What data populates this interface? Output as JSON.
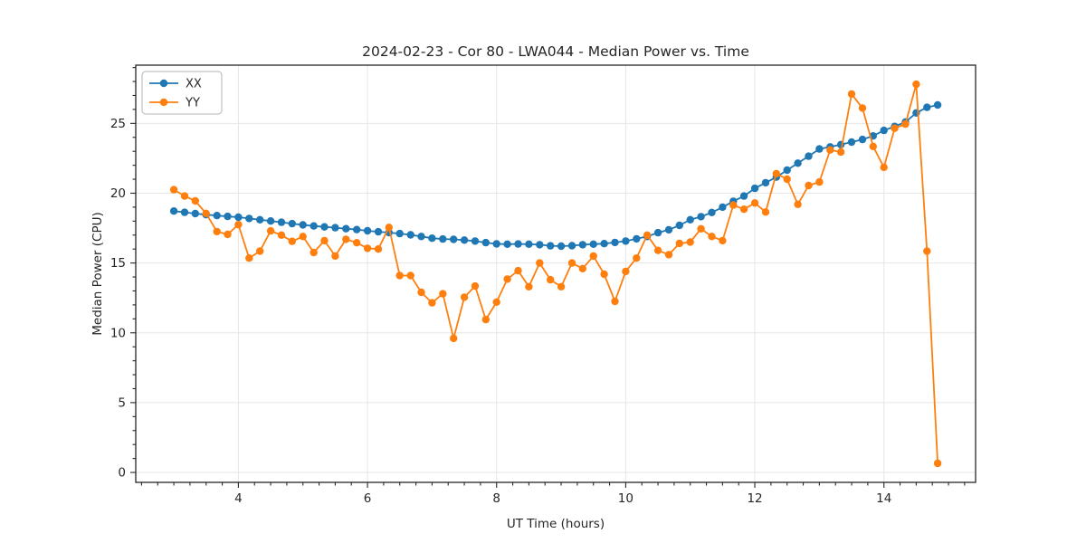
{
  "chart_data": {
    "type": "line",
    "title": "2024-02-23 - Cor 80 - LWA044 - Median Power vs. Time",
    "xlabel": "UT Time (hours)",
    "ylabel": "Median Power (CPU)",
    "xlim": [
      2.41,
      15.42
    ],
    "ylim": [
      -0.71,
      29.17
    ],
    "xticks": [
      4,
      6,
      8,
      10,
      12,
      14
    ],
    "yticks": [
      0,
      5,
      10,
      15,
      20,
      25
    ],
    "x_minor_step": 0.25,
    "y_minor_step": 1,
    "grid": "major-both",
    "legend_position": "upper-left",
    "background_color": "#ffffff",
    "grid_color": "#e6e6e6",
    "axis_color": "#262626",
    "x": [
      3.0,
      3.167,
      3.333,
      3.5,
      3.667,
      3.833,
      4.0,
      4.167,
      4.333,
      4.5,
      4.667,
      4.833,
      5.0,
      5.167,
      5.333,
      5.5,
      5.667,
      5.833,
      6.0,
      6.167,
      6.333,
      6.5,
      6.667,
      6.833,
      7.0,
      7.167,
      7.333,
      7.5,
      7.667,
      7.833,
      8.0,
      8.167,
      8.333,
      8.5,
      8.667,
      8.833,
      9.0,
      9.167,
      9.333,
      9.5,
      9.667,
      9.833,
      10.0,
      10.167,
      10.333,
      10.5,
      10.667,
      10.833,
      11.0,
      11.167,
      11.333,
      11.5,
      11.667,
      11.833,
      12.0,
      12.167,
      12.333,
      12.5,
      12.667,
      12.833,
      13.0,
      13.167,
      13.333,
      13.5,
      13.667,
      13.833,
      14.0,
      14.167,
      14.333,
      14.5,
      14.667,
      14.833
    ],
    "series": [
      {
        "name": "XX",
        "color": "#1f77b4",
        "marker": "circle",
        "values": [
          18.72,
          18.63,
          18.54,
          18.46,
          18.4,
          18.34,
          18.28,
          18.19,
          18.1,
          18.01,
          17.92,
          17.82,
          17.73,
          17.65,
          17.59,
          17.53,
          17.46,
          17.39,
          17.31,
          17.24,
          17.18,
          17.11,
          17.02,
          16.9,
          16.78,
          16.72,
          16.69,
          16.64,
          16.57,
          16.46,
          16.37,
          16.35,
          16.36,
          16.35,
          16.31,
          16.23,
          16.21,
          16.24,
          16.31,
          16.35,
          16.39,
          16.47,
          16.57,
          16.73,
          16.9,
          17.17,
          17.38,
          17.7,
          18.1,
          18.32,
          18.62,
          19.0,
          19.42,
          19.8,
          20.35,
          20.75,
          21.15,
          21.65,
          22.15,
          22.65,
          23.17,
          23.32,
          23.48,
          23.66,
          23.85,
          24.1,
          24.5,
          24.78,
          25.1,
          25.75,
          26.15,
          26.32
        ]
      },
      {
        "name": "YY",
        "color": "#ff7f0e",
        "marker": "circle",
        "values": [
          20.25,
          19.8,
          19.45,
          18.55,
          17.25,
          17.05,
          17.75,
          15.35,
          15.85,
          17.3,
          17.0,
          16.55,
          16.9,
          15.75,
          16.6,
          15.5,
          16.7,
          16.45,
          16.05,
          16.0,
          17.55,
          14.1,
          14.1,
          12.9,
          12.15,
          12.8,
          9.6,
          12.55,
          13.35,
          10.95,
          12.2,
          13.85,
          14.45,
          13.3,
          15.0,
          13.8,
          13.3,
          15.0,
          14.6,
          15.5,
          14.2,
          12.25,
          14.4,
          15.35,
          17.0,
          15.9,
          15.6,
          16.4,
          16.5,
          17.45,
          16.9,
          16.6,
          19.15,
          18.85,
          19.3,
          18.65,
          21.4,
          21.0,
          19.2,
          20.55,
          20.8,
          23.1,
          22.95,
          27.1,
          26.1,
          23.35,
          21.85,
          24.65,
          24.95,
          27.8,
          15.85,
          0.65
        ]
      }
    ]
  }
}
